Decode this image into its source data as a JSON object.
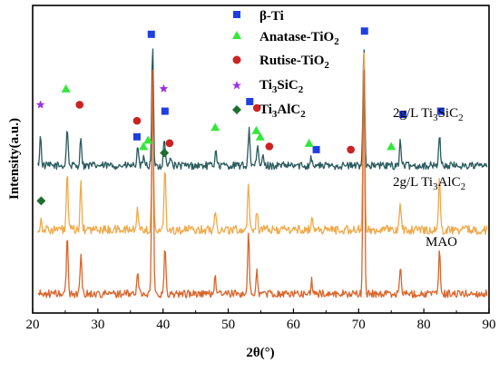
{
  "chart_data": {
    "type": "line",
    "xlabel": "2θ(°)",
    "ylabel": "Intensity(a.u.)",
    "xlim": [
      20,
      90
    ],
    "x_ticks": [
      20,
      30,
      40,
      50,
      60,
      70,
      80,
      90
    ],
    "y_ticks_shown": false,
    "grid": false,
    "legend_position": "top-center",
    "legend": [
      {
        "label": "β-Ti",
        "marker": "square",
        "color": "#1f3fe0"
      },
      {
        "label": "Anatase-TiO2",
        "marker": "triangle",
        "color": "#33e83a"
      },
      {
        "label": "Rutise-TiO2",
        "marker": "circle",
        "color": "#cc2222"
      },
      {
        "label": "Ti3SiC2",
        "marker": "star",
        "color": "#9b30e8"
      },
      {
        "label": "Ti3AlC2",
        "marker": "diamond",
        "color": "#1f6e2e"
      }
    ],
    "series": [
      {
        "name": "2g/L Ti3SiC2",
        "color": "#2a5a5e",
        "baseline": 2.0,
        "noise": 0.06,
        "peaks": [
          [
            21.2,
            0.45
          ],
          [
            25.3,
            0.6
          ],
          [
            27.4,
            0.45
          ],
          [
            36.1,
            0.25
          ],
          [
            37.1,
            0.15
          ],
          [
            38.4,
            1.85
          ],
          [
            40.2,
            0.45
          ],
          [
            41.2,
            0.15
          ],
          [
            48.1,
            0.28
          ],
          [
            53.2,
            0.6
          ],
          [
            54.5,
            0.3
          ],
          [
            55.3,
            0.15
          ],
          [
            62.7,
            0.15
          ],
          [
            70.8,
            1.95
          ],
          [
            76.4,
            0.4
          ],
          [
            82.4,
            0.5
          ]
        ]
      },
      {
        "name": "2g/L Ti3AlC2",
        "color": "#f0a94a",
        "baseline": 1.0,
        "noise": 0.07,
        "peaks": [
          [
            21.3,
            0.15
          ],
          [
            25.3,
            0.9
          ],
          [
            27.4,
            0.7
          ],
          [
            36.1,
            0.35
          ],
          [
            38.4,
            2.05
          ],
          [
            40.3,
            1.05
          ],
          [
            48.0,
            0.35
          ],
          [
            53.1,
            0.75
          ],
          [
            54.4,
            0.3
          ],
          [
            62.8,
            0.2
          ],
          [
            70.8,
            2.9
          ],
          [
            76.4,
            0.4
          ],
          [
            82.4,
            0.8
          ]
        ]
      },
      {
        "name": "MAO",
        "color": "#d9652c",
        "baseline": 0.0,
        "noise": 0.06,
        "peaks": [
          [
            25.3,
            0.9
          ],
          [
            27.4,
            0.65
          ],
          [
            36.1,
            0.35
          ],
          [
            38.4,
            3.65
          ],
          [
            40.3,
            0.7
          ],
          [
            48.0,
            0.3
          ],
          [
            53.1,
            0.95
          ],
          [
            54.4,
            0.35
          ],
          [
            62.8,
            0.2
          ],
          [
            70.8,
            3.65
          ],
          [
            76.4,
            0.45
          ],
          [
            82.4,
            0.65
          ]
        ]
      }
    ],
    "phase_markers": [
      {
        "phase": "β-Ti",
        "positions": [
          [
            36.0,
            2.45
          ],
          [
            38.2,
            4.05
          ],
          [
            40.3,
            2.85
          ],
          [
            53.3,
            3.0
          ],
          [
            63.5,
            2.25
          ],
          [
            70.9,
            4.1
          ],
          [
            76.8,
            2.8
          ],
          [
            82.6,
            2.85
          ]
        ]
      },
      {
        "phase": "Anatase-TiO2",
        "positions": [
          [
            25.1,
            3.2
          ],
          [
            37.0,
            2.3
          ],
          [
            37.7,
            2.4
          ],
          [
            48.0,
            2.6
          ],
          [
            54.3,
            2.55
          ],
          [
            54.9,
            2.45
          ],
          [
            62.4,
            2.35
          ],
          [
            75.0,
            2.3
          ]
        ]
      },
      {
        "phase": "Rutise-TiO2",
        "positions": [
          [
            27.2,
            2.95
          ],
          [
            36.0,
            2.7
          ],
          [
            41.0,
            2.35
          ],
          [
            54.4,
            2.9
          ],
          [
            56.3,
            2.3
          ],
          [
            68.8,
            2.25
          ]
        ]
      },
      {
        "phase": "Ti3SiC2",
        "positions": [
          [
            21.2,
            2.95
          ],
          [
            40.1,
            3.2
          ]
        ]
      },
      {
        "phase": "Ti3AlC2",
        "positions": [
          [
            21.3,
            1.45
          ],
          [
            40.2,
            2.2
          ]
        ]
      }
    ],
    "ylim": [
      -0.3,
      4.5
    ]
  },
  "labels": {
    "legend_0": "β-Ti",
    "legend_1": "Anatase-TiO",
    "legend_1_sub": "2",
    "legend_2": "Rutise-TiO",
    "legend_2_sub": "2",
    "legend_3a": "Ti",
    "legend_3b": "3",
    "legend_3c": "SiC",
    "legend_3d": "2",
    "legend_4a": "Ti",
    "legend_4b": "3",
    "legend_4c": "AlC",
    "legend_4d": "2",
    "trace_0a": "2g/L Ti",
    "trace_0b": "3",
    "trace_0c": "SiC",
    "trace_0d": "2",
    "trace_1a": "2g/L Ti",
    "trace_1b": "3",
    "trace_1c": "AlC",
    "trace_1d": "2",
    "trace_2": "MAO"
  }
}
